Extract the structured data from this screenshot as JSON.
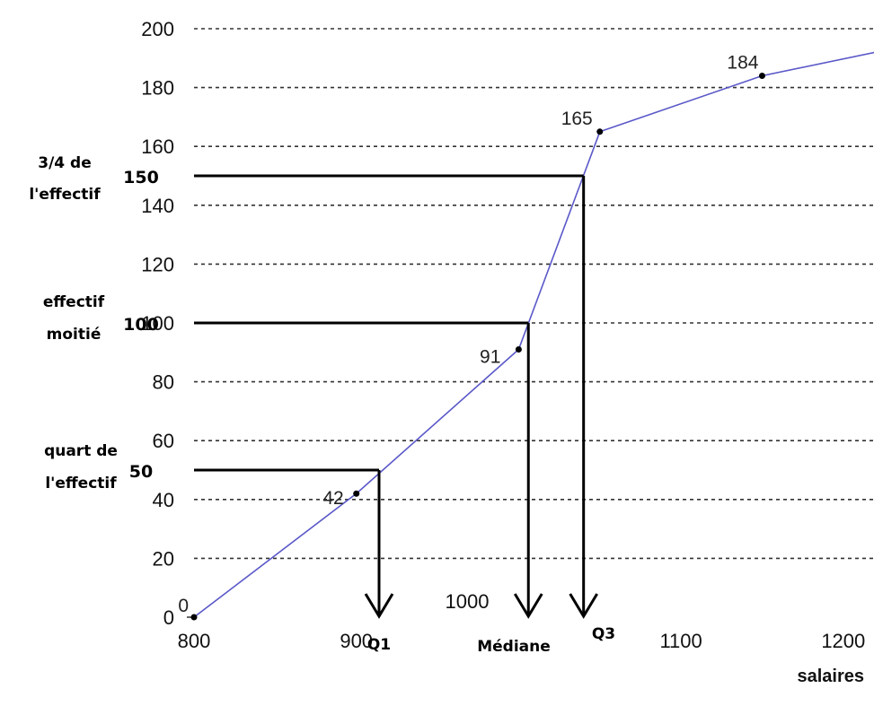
{
  "chart_data": {
    "type": "line",
    "xlabel": "salaires",
    "ylabel": "",
    "xlim": [
      800,
      1220
    ],
    "ylim": [
      0,
      200
    ],
    "x_ticks": [
      "800",
      "900",
      "1100",
      "1200"
    ],
    "y_ticks": [
      "0",
      "20",
      "40",
      "60",
      "80",
      "100",
      "120",
      "140",
      "160",
      "180",
      "200"
    ],
    "grid": "horizontal dashed",
    "series": [
      {
        "points": [
          [
            800,
            0
          ],
          [
            900,
            42
          ],
          [
            1000,
            91
          ],
          [
            1050,
            165
          ],
          [
            1150,
            184
          ],
          [
            1220,
            192
          ]
        ],
        "color": "#5a58c8"
      }
    ],
    "point_labels": [
      {
        "x": 800,
        "y": 0,
        "text": "0"
      },
      {
        "x": 900,
        "y": 42,
        "text": "42"
      },
      {
        "x": 1000,
        "y": 91,
        "text": "91"
      },
      {
        "x": 1050,
        "y": 165,
        "text": "165"
      },
      {
        "x": 1150,
        "y": 184,
        "text": "184"
      }
    ],
    "annotations": {
      "levels": [
        {
          "y": 50,
          "label_value": "50",
          "caption": [
            "quart de",
            "l'effectif"
          ],
          "x_end": 914,
          "arrow_label": "Q1"
        },
        {
          "y": 100,
          "label_value": "100",
          "caption": [
            "effectif",
            "moitié"
          ],
          "x_end": 1006,
          "arrow_label": "Médiane",
          "extra_label": "1000"
        },
        {
          "y": 150,
          "label_value": "150",
          "caption": [
            "3/4 de",
            "l'effectif"
          ],
          "x_end": 1040,
          "arrow_label": "Q3"
        }
      ]
    }
  }
}
